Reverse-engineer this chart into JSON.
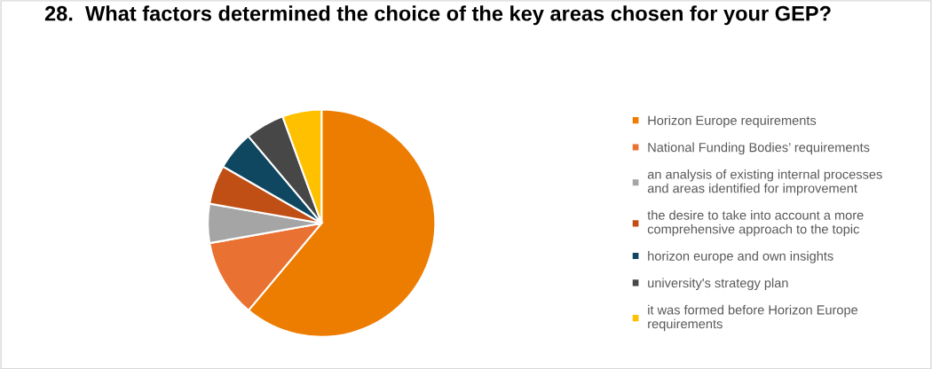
{
  "chart_data": {
    "type": "pie",
    "title": "28.  What factors determined the choice of the key areas chosen for your GEP?",
    "categories": [
      "Horizon Europe requirements",
      "National Funding Bodies’ requirements",
      "an analysis of existing internal processes and areas identified for improvement",
      "the desire to take into account a more comprehensive approach to the topic",
      "horizon europe and own insights",
      "university's strategy plan",
      "it was formed before Horizon Europe requirements"
    ],
    "values": [
      61.1,
      11.1,
      5.56,
      5.56,
      5.56,
      5.56,
      5.56
    ],
    "colors": [
      "#ed7d00",
      "#e97132",
      "#a5a5a5",
      "#c04f15",
      "#0f4761",
      "#474747",
      "#ffc000"
    ],
    "legend": "right"
  }
}
